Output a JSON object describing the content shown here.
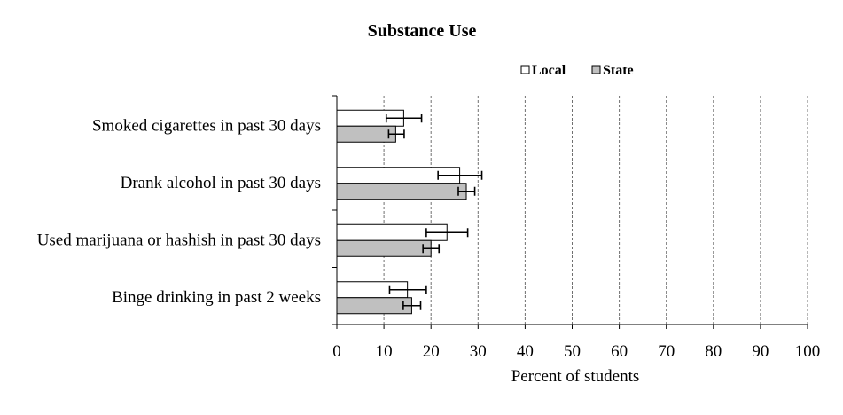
{
  "chart_data": {
    "type": "bar",
    "orientation": "horizontal",
    "title": "Substance Use",
    "xlabel": "Percent of students",
    "ylabel": "",
    "xlim": [
      0,
      100
    ],
    "xticks": [
      0,
      10,
      20,
      30,
      40,
      50,
      60,
      70,
      80,
      90,
      100
    ],
    "grid": "vertical dashed",
    "legend_position": "top-right",
    "categories": [
      "Smoked cigarettes in past 30 days",
      "Drank alcohol in past 30 days",
      "Used marijuana or hashish in past 30 days",
      "Binge drinking in past 2 weeks"
    ],
    "series": [
      {
        "name": "Local",
        "color": "#ffffff",
        "values": [
          14.2,
          26.1,
          23.4,
          15.0
        ],
        "error_low": [
          10.5,
          21.5,
          19.0,
          11.2
        ],
        "error_high": [
          18.0,
          30.8,
          27.8,
          19.0
        ]
      },
      {
        "name": "State",
        "color": "#c0c0c0",
        "values": [
          12.5,
          27.5,
          20.0,
          15.9
        ],
        "error_low": [
          11.0,
          25.8,
          18.3,
          14.1
        ],
        "error_high": [
          14.3,
          29.3,
          21.7,
          17.8
        ]
      }
    ]
  }
}
